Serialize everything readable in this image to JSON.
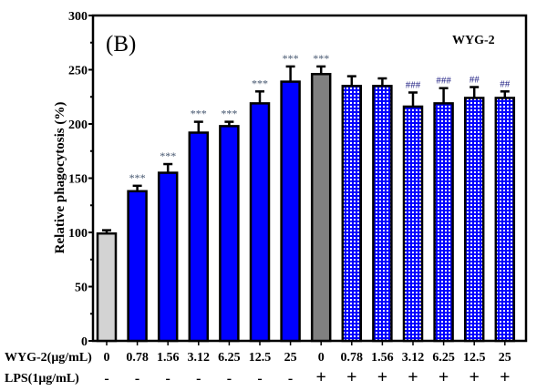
{
  "chart_data": {
    "type": "bar",
    "panel_label": "(B)",
    "legend_text": "WYG-2",
    "ylabel": "Relative phagocytosis (%)",
    "ylim": [
      0,
      300
    ],
    "yticks": [
      0,
      50,
      100,
      150,
      200,
      250,
      300
    ],
    "row_labels": [
      "WYG-2(μg/mL)",
      "LPS(1μg/mL)"
    ],
    "categories": [
      "0",
      "0.78",
      "1.56",
      "3.12",
      "6.25",
      "12.5",
      "25",
      "0",
      "0.78",
      "1.56",
      "3.12",
      "6.25",
      "12.5",
      "25"
    ],
    "lps": [
      "-",
      "-",
      "-",
      "-",
      "-",
      "-",
      "-",
      "+",
      "+",
      "+",
      "+",
      "+",
      "+",
      "+"
    ],
    "values": [
      99,
      138,
      155,
      192,
      198,
      219,
      239,
      246,
      235,
      235,
      216,
      219,
      224,
      224
    ],
    "errors": [
      3,
      5,
      8,
      10,
      4,
      11,
      14,
      7,
      9,
      7,
      13,
      14,
      10,
      6
    ],
    "annotations": [
      "",
      "***",
      "***",
      "***",
      "***",
      "***",
      "***",
      "***",
      "",
      "",
      "###",
      "###",
      "##",
      "##"
    ],
    "fills": [
      "control",
      "wyg",
      "wyg",
      "wyg",
      "wyg",
      "wyg",
      "wyg",
      "lps",
      "pattern",
      "pattern",
      "pattern",
      "pattern",
      "pattern",
      "pattern"
    ],
    "colors": {
      "control": "#d3d3d3",
      "wyg": "#0000ff",
      "lps": "#808080",
      "pattern": "#0000ff",
      "star": "#44556e",
      "hash": "#1a1a80"
    }
  }
}
